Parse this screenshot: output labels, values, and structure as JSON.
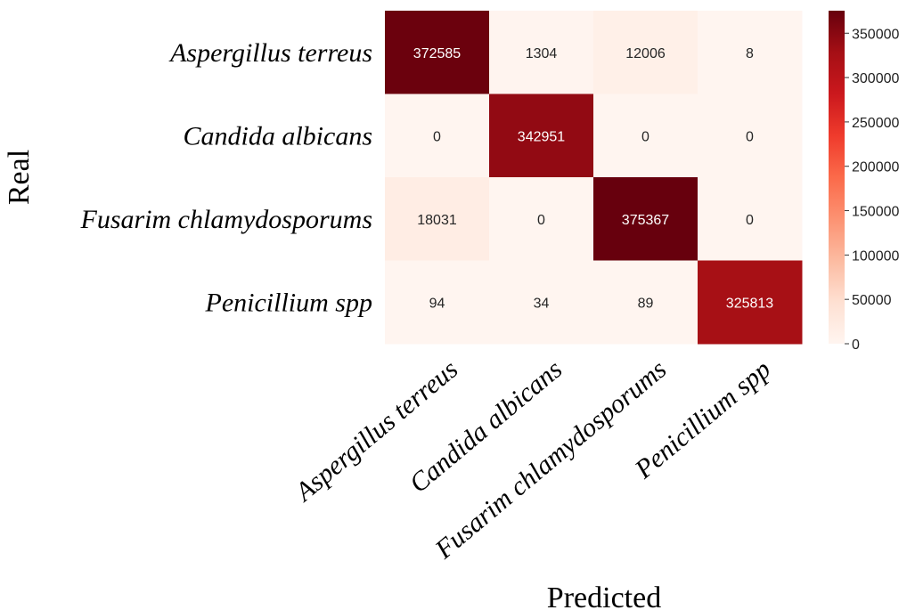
{
  "chart_data": {
    "type": "heatmap",
    "title": "",
    "xlabel": "Predicted",
    "ylabel": "Real",
    "rows": [
      "Aspergillus terreus",
      "Candida albicans",
      "Fusarim chlamydosporums",
      "Penicillium spp"
    ],
    "columns": [
      "Aspergillus terreus",
      "Candida albicans",
      "Fusarim chlamydosporums",
      "Penicillium spp"
    ],
    "values": [
      [
        372585,
        1304,
        12006,
        8
      ],
      [
        0,
        342951,
        0,
        0
      ],
      [
        18031,
        0,
        375367,
        0
      ],
      [
        94,
        34,
        89,
        325813
      ]
    ],
    "colorbar": {
      "min": 0,
      "max": 375367,
      "ticks": [
        0,
        50000,
        100000,
        150000,
        200000,
        250000,
        300000,
        350000
      ],
      "colormap": "Reds",
      "low_color": "#fff5f0",
      "high_color": "#67000d"
    },
    "grid": false
  }
}
